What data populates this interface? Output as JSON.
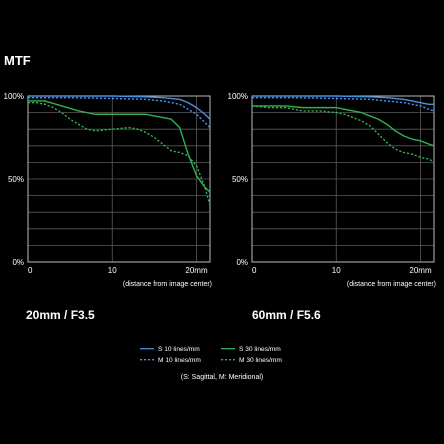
{
  "title": "MTF",
  "x_caption": "(distance from image center)",
  "legend_note": "(S: Sagittal, M: Meridional)",
  "colors": {
    "blue": "#4a90e0",
    "green": "#32b050",
    "grid": "#5a5a5a",
    "frame": "#bdbdbd",
    "background": "#000000"
  },
  "legend": [
    {
      "label": "S  10 lines/mm",
      "color": "#4a90e0",
      "dash": "solid"
    },
    {
      "label": "M 10 lines/mm",
      "color": "#4a90e0",
      "dash": "dashed"
    },
    {
      "label": "S  30 lines/mm",
      "color": "#32b050",
      "dash": "solid"
    },
    {
      "label": "M 30 lines/mm",
      "color": "#32b050",
      "dash": "dashed"
    }
  ],
  "chart_data": [
    {
      "type": "line",
      "lens_label": "20mm / F3.5",
      "x_ticks": [
        "0",
        "10",
        "20mm"
      ],
      "y_ticks": [
        "100%",
        "50%",
        "0%"
      ],
      "xlim": [
        0,
        21.6
      ],
      "ylim": [
        0,
        100
      ],
      "grid": true,
      "series": [
        {
          "name": "S 10 lines/mm",
          "color": "#4a90e0",
          "dash": "solid",
          "x": [
            0,
            5,
            10,
            14,
            16,
            18,
            19,
            20,
            21,
            21.6
          ],
          "y": [
            100,
            100,
            100,
            99.5,
            99,
            98,
            96,
            93,
            89,
            86
          ]
        },
        {
          "name": "M 10 lines/mm",
          "color": "#4a90e0",
          "dash": "dashed",
          "x": [
            0,
            5,
            10,
            14,
            16,
            18,
            19,
            20,
            21,
            21.6
          ],
          "y": [
            99,
            99,
            98.5,
            98,
            97,
            95,
            92,
            89,
            84,
            81
          ]
        },
        {
          "name": "S 30 lines/mm",
          "color": "#32b050",
          "dash": "solid",
          "x": [
            0,
            2,
            4,
            6,
            8,
            10,
            12,
            14,
            15,
            16,
            17,
            18,
            19,
            20,
            21,
            21.6
          ],
          "y": [
            97,
            97,
            94,
            91,
            89,
            89,
            89,
            89,
            88,
            87,
            86,
            81,
            65,
            52,
            45,
            42
          ]
        },
        {
          "name": "M 30 lines/mm",
          "color": "#32b050",
          "dash": "dashed",
          "x": [
            0,
            1,
            2,
            3,
            4,
            5,
            6,
            7,
            8,
            10,
            12,
            13,
            14,
            15,
            16,
            17,
            18,
            19,
            20,
            21,
            21.6
          ],
          "y": [
            96,
            96,
            95,
            93,
            90,
            86,
            83,
            80,
            79,
            80,
            81,
            80,
            78,
            75,
            71,
            67,
            66,
            64,
            58,
            45,
            34
          ]
        }
      ]
    },
    {
      "type": "line",
      "lens_label": "60mm / F5.6",
      "x_ticks": [
        "0",
        "10",
        "20mm"
      ],
      "y_ticks": [
        "100%",
        "50%",
        "0%"
      ],
      "xlim": [
        0,
        21.6
      ],
      "ylim": [
        0,
        100
      ],
      "grid": true,
      "series": [
        {
          "name": "S 10 lines/mm",
          "color": "#4a90e0",
          "dash": "solid",
          "x": [
            0,
            5,
            10,
            14,
            16,
            18,
            19,
            20,
            21,
            21.6
          ],
          "y": [
            100,
            100,
            100,
            99.5,
            99,
            98,
            97,
            96,
            95,
            95
          ]
        },
        {
          "name": "M 10 lines/mm",
          "color": "#4a90e0",
          "dash": "dashed",
          "x": [
            0,
            5,
            10,
            14,
            16,
            18,
            19,
            20,
            21,
            21.6
          ],
          "y": [
            99,
            99,
            98.5,
            98,
            97,
            96,
            95,
            94,
            92,
            91
          ]
        },
        {
          "name": "S 30 lines/mm",
          "color": "#32b050",
          "dash": "solid",
          "x": [
            0,
            2,
            4,
            6,
            8,
            10,
            11,
            12,
            13,
            14,
            15,
            16,
            17,
            18,
            19,
            20,
            21,
            21.6
          ],
          "y": [
            94,
            94,
            94,
            93,
            93,
            93,
            92,
            91,
            90,
            88,
            86,
            83,
            79,
            76,
            74,
            73,
            71,
            70
          ]
        },
        {
          "name": "M 30 lines/mm",
          "color": "#32b050",
          "dash": "dashed",
          "x": [
            0,
            2,
            4,
            6,
            8,
            10,
            11,
            12,
            13,
            14,
            15,
            16,
            17,
            18,
            19,
            20,
            21,
            21.6
          ],
          "y": [
            94,
            93,
            93,
            91,
            91,
            90,
            89,
            87,
            85,
            82,
            77,
            72,
            68,
            66,
            65,
            63,
            62,
            60
          ]
        }
      ]
    }
  ]
}
